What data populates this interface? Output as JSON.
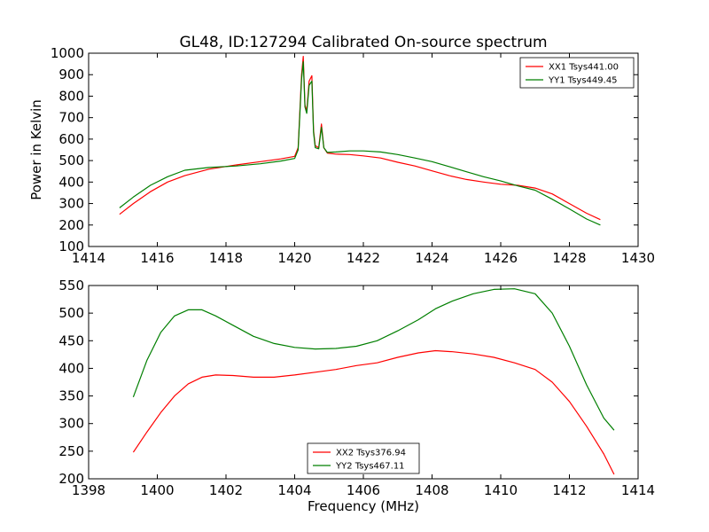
{
  "title": "GL48, ID:127294 Calibrated On-source spectrum",
  "colors": {
    "red": "#ff0000",
    "green": "#007f00"
  },
  "chart_data": [
    {
      "type": "line",
      "title": "GL48, ID:127294 Calibrated On-source spectrum",
      "xlabel": "",
      "ylabel": "Power in Kelvin",
      "xlim": [
        1414,
        1430
      ],
      "ylim": [
        100,
        1000
      ],
      "xticks": [
        1414,
        1416,
        1418,
        1420,
        1422,
        1424,
        1426,
        1428,
        1430
      ],
      "yticks": [
        100,
        200,
        300,
        400,
        500,
        600,
        700,
        800,
        900,
        1000
      ],
      "legend": "top-right",
      "grid": false,
      "series": [
        {
          "name": "XX1 Tsys441.00",
          "color": "#ff0000",
          "x": [
            1414.9,
            1415.3,
            1415.8,
            1416.3,
            1416.8,
            1417.5,
            1418.3,
            1419.0,
            1419.6,
            1420.0,
            1420.1,
            1420.2,
            1420.25,
            1420.3,
            1420.35,
            1420.42,
            1420.5,
            1420.55,
            1420.6,
            1420.7,
            1420.78,
            1420.85,
            1420.95,
            1421.2,
            1421.6,
            1422.0,
            1422.5,
            1423.0,
            1423.5,
            1424.0,
            1424.5,
            1425.0,
            1425.5,
            1426.0,
            1426.5,
            1427.0,
            1427.5,
            1428.0,
            1428.5,
            1428.9
          ],
          "y": [
            250,
            300,
            355,
            400,
            430,
            460,
            480,
            495,
            508,
            520,
            560,
            900,
            985,
            760,
            730,
            870,
            895,
            640,
            570,
            560,
            670,
            560,
            535,
            530,
            528,
            522,
            512,
            492,
            475,
            452,
            430,
            412,
            400,
            390,
            385,
            372,
            345,
            300,
            255,
            225
          ]
        },
        {
          "name": "YY1 Tsys449.45",
          "color": "#007f00",
          "x": [
            1414.9,
            1415.3,
            1415.8,
            1416.3,
            1416.8,
            1417.5,
            1418.3,
            1419.0,
            1419.6,
            1420.0,
            1420.1,
            1420.2,
            1420.25,
            1420.3,
            1420.35,
            1420.42,
            1420.5,
            1420.55,
            1420.6,
            1420.7,
            1420.78,
            1420.85,
            1420.95,
            1421.2,
            1421.6,
            1422.0,
            1422.5,
            1423.0,
            1423.5,
            1424.0,
            1424.5,
            1425.0,
            1425.5,
            1426.0,
            1426.5,
            1427.0,
            1427.5,
            1428.0,
            1428.5,
            1428.9
          ],
          "y": [
            280,
            330,
            385,
            425,
            455,
            468,
            475,
            485,
            498,
            510,
            550,
            880,
            960,
            750,
            720,
            850,
            870,
            630,
            560,
            555,
            655,
            560,
            538,
            540,
            545,
            545,
            540,
            528,
            512,
            495,
            472,
            448,
            425,
            405,
            382,
            362,
            320,
            275,
            228,
            200
          ]
        }
      ]
    },
    {
      "type": "line",
      "title": "",
      "xlabel": "Frequency (MHz)",
      "ylabel": "",
      "xlim": [
        1398,
        1414
      ],
      "ylim": [
        200,
        550
      ],
      "xticks": [
        1398,
        1400,
        1402,
        1404,
        1406,
        1408,
        1410,
        1412,
        1414
      ],
      "yticks": [
        200,
        250,
        300,
        350,
        400,
        450,
        500,
        550
      ],
      "legend": "bottom-center",
      "grid": false,
      "series": [
        {
          "name": "XX2 Tsys376.94",
          "color": "#ff0000",
          "x": [
            1399.3,
            1399.7,
            1400.1,
            1400.5,
            1400.9,
            1401.3,
            1401.7,
            1402.2,
            1402.8,
            1403.4,
            1404.0,
            1404.6,
            1405.2,
            1405.8,
            1406.4,
            1407.0,
            1407.6,
            1408.1,
            1408.6,
            1409.2,
            1409.8,
            1410.4,
            1411.0,
            1411.5,
            1412.0,
            1412.5,
            1413.0,
            1413.3
          ],
          "y": [
            248,
            285,
            320,
            350,
            372,
            384,
            388,
            387,
            384,
            384,
            388,
            393,
            398,
            405,
            410,
            420,
            428,
            432,
            430,
            426,
            420,
            410,
            398,
            375,
            340,
            295,
            245,
            208
          ]
        },
        {
          "name": "YY2 Tsys467.11",
          "color": "#007f00",
          "x": [
            1399.3,
            1399.7,
            1400.1,
            1400.5,
            1400.9,
            1401.3,
            1401.7,
            1402.2,
            1402.8,
            1403.4,
            1404.0,
            1404.6,
            1405.2,
            1405.8,
            1406.4,
            1407.0,
            1407.6,
            1408.1,
            1408.6,
            1409.2,
            1409.8,
            1410.4,
            1411.0,
            1411.5,
            1412.0,
            1412.5,
            1413.0,
            1413.3
          ],
          "y": [
            348,
            415,
            465,
            495,
            506,
            506,
            495,
            478,
            458,
            445,
            438,
            435,
            436,
            440,
            450,
            468,
            488,
            508,
            522,
            535,
            543,
            544,
            535,
            500,
            440,
            370,
            310,
            288
          ]
        }
      ]
    }
  ]
}
